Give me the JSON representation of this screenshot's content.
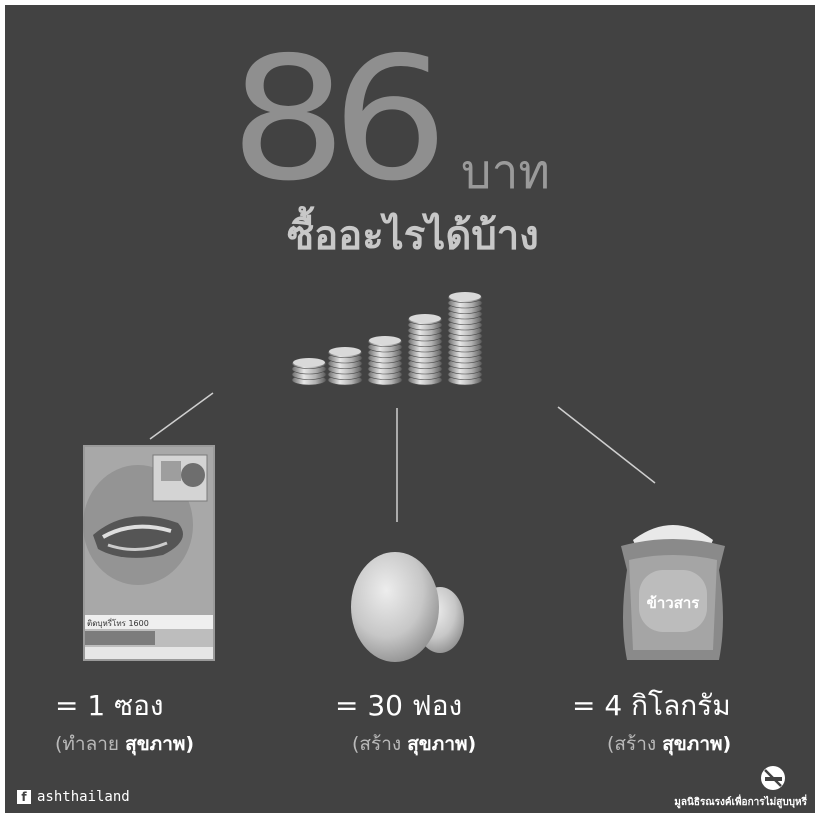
{
  "headline": {
    "amount": "86",
    "currency": "บาท",
    "question": "ซื้ออะไรได้บ้าง"
  },
  "items": [
    {
      "name": "cigarettes",
      "main": "= 1 ซอง",
      "sub_prefix": "(ทำลาย ",
      "sub_strong": "สุขภาพ)",
      "pack_text": "ติดบุหรี่โทร 1600"
    },
    {
      "name": "eggs",
      "main": "= 30 ฟอง",
      "sub_prefix": "(สร้าง ",
      "sub_strong": "สุขภาพ)"
    },
    {
      "name": "rice",
      "main": "= 4 กิโลกรัม",
      "sub_prefix": "(สร้าง ",
      "sub_strong": "สุขภาพ)",
      "sack_label": "ข้าวสาร"
    }
  ],
  "footer": {
    "facebook_glyph": "f",
    "facebook_handle": "ashthailand",
    "foundation": "มูลนิธิรณรงค์เพื่อการไม่สูบบุหรี่"
  },
  "colors": {
    "background": "#424242",
    "number": "#8f8f8f",
    "text": "#ffffff"
  },
  "icons": [
    "coin-stacks-icon",
    "cigarette-pack-icon",
    "eggs-icon",
    "rice-sack-icon",
    "facebook-icon",
    "no-smoking-icon"
  ]
}
